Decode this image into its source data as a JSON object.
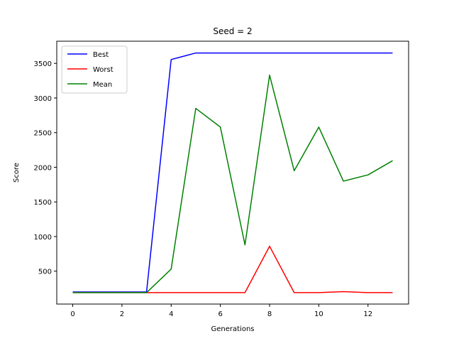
{
  "chart_data": {
    "type": "line",
    "title": "Seed = 2",
    "xlabel": "Generations",
    "ylabel": "Score",
    "x": [
      0,
      1,
      2,
      3,
      4,
      5,
      6,
      7,
      8,
      9,
      10,
      11,
      12,
      13
    ],
    "xlim": [
      -0.65,
      13.65
    ],
    "ylim": [
      25,
      3820
    ],
    "xticks": [
      0,
      2,
      4,
      6,
      8,
      10,
      12
    ],
    "yticks": [
      500,
      1000,
      1500,
      2000,
      2500,
      3000,
      3500
    ],
    "grid": false,
    "legend_position": "upper-left",
    "series": [
      {
        "name": "Best",
        "color": "#0000ff",
        "values": [
          200,
          200,
          200,
          200,
          3555,
          3650,
          3650,
          3650,
          3650,
          3650,
          3650,
          3650,
          3650,
          3650
        ]
      },
      {
        "name": "Worst",
        "color": "#ff0000",
        "values": [
          190,
          190,
          190,
          190,
          190,
          190,
          190,
          190,
          860,
          190,
          190,
          205,
          190,
          190
        ]
      },
      {
        "name": "Mean",
        "color": "#008000",
        "values": [
          190,
          190,
          190,
          190,
          530,
          2850,
          2580,
          880,
          3330,
          1950,
          2580,
          1800,
          1890,
          2095
        ]
      }
    ]
  }
}
